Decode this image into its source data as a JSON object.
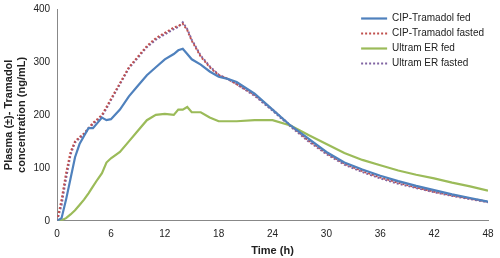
{
  "chart_data": {
    "type": "line",
    "x_label": "Time (h)",
    "y_label": "Plasma (±)- Tramadol concentration (ng/mL)",
    "x": [
      0,
      0.5,
      1,
      1.5,
      2,
      2.5,
      3,
      3.5,
      4,
      4.5,
      5,
      5.5,
      6,
      7,
      8,
      9,
      10,
      11,
      12,
      13,
      13.5,
      14,
      14.5,
      15,
      16,
      17,
      18,
      19,
      20,
      22,
      24,
      26,
      28,
      30,
      32,
      34,
      36,
      38,
      40,
      42,
      44,
      46,
      48
    ],
    "series": [
      {
        "name": "CIP-Tramadol fed",
        "color": "#4f81bd",
        "line_style": "solid",
        "values": [
          0,
          5,
          40,
          80,
          120,
          145,
          160,
          175,
          175,
          185,
          195,
          190,
          192,
          210,
          235,
          255,
          275,
          290,
          305,
          315,
          322,
          325,
          315,
          305,
          295,
          282,
          272,
          268,
          262,
          240,
          210,
          180,
          155,
          130,
          110,
          97,
          85,
          75,
          66,
          58,
          50,
          43,
          36
        ]
      },
      {
        "name": "CIP-Tramadol fasted",
        "color": "#c0504d",
        "line_style": "dotted",
        "values": [
          0,
          40,
          90,
          130,
          150,
          158,
          165,
          175,
          185,
          192,
          200,
          215,
          230,
          260,
          290,
          310,
          330,
          345,
          355,
          365,
          368,
          372,
          360,
          340,
          310,
          290,
          275,
          268,
          258,
          238,
          210,
          180,
          152,
          128,
          108,
          94,
          82,
          72,
          63,
          55,
          48,
          42,
          36
        ]
      },
      {
        "name": "Ultram ER fed",
        "color": "#9bbb59",
        "line_style": "solid",
        "values": [
          0,
          1,
          5,
          12,
          20,
          30,
          40,
          52,
          65,
          78,
          90,
          110,
          118,
          130,
          150,
          170,
          190,
          200,
          202,
          200,
          210,
          210,
          215,
          205,
          205,
          195,
          188,
          188,
          188,
          190,
          190,
          180,
          162,
          145,
          128,
          115,
          105,
          95,
          87,
          80,
          72,
          65,
          57
        ]
      },
      {
        "name": "Ultram ER fasted",
        "color": "#8064a2",
        "line_style": "dotted",
        "values": [
          0,
          30,
          80,
          125,
          148,
          156,
          163,
          174,
          183,
          190,
          198,
          212,
          228,
          258,
          288,
          308,
          328,
          342,
          352,
          362,
          366,
          375,
          362,
          342,
          312,
          292,
          276,
          268,
          258,
          236,
          208,
          178,
          150,
          126,
          106,
          92,
          80,
          70,
          62,
          54,
          47,
          41,
          35
        ]
      }
    ],
    "xlim": [
      0,
      48
    ],
    "xticks": [
      0,
      6,
      12,
      18,
      24,
      30,
      36,
      42,
      48
    ],
    "ylim": [
      0,
      400
    ],
    "yticks": [
      0,
      100,
      200,
      300,
      400
    ],
    "grid": false,
    "legend": "top-right"
  }
}
